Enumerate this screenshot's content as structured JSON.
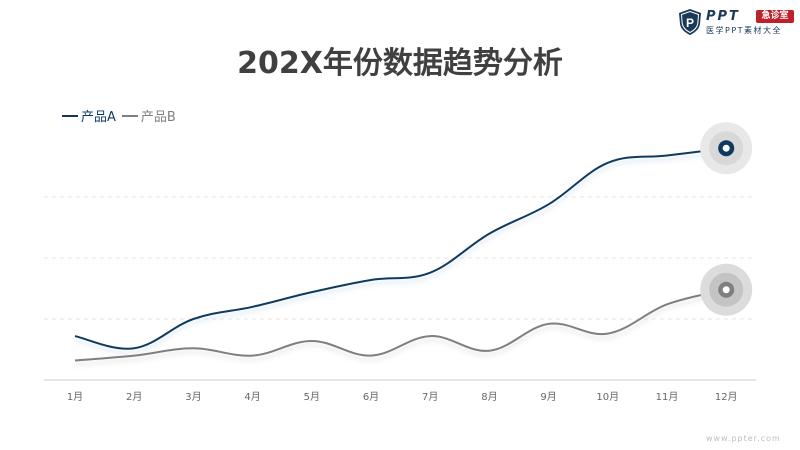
{
  "logo": {
    "shield_letter": "P",
    "ppt": "PPT",
    "badge": "急诊室",
    "subtitle": "医学PPT素材大全"
  },
  "colors": {
    "series_a": "#0e3a5f",
    "series_b": "#7f7f7f",
    "title": "#404040",
    "grid": "#e6e6e6",
    "axis": "#cccccc"
  },
  "watermark": "www.ppter.com",
  "chart_data": {
    "type": "line",
    "title": "202X年份数据趋势分析",
    "xlabel": "",
    "ylabel": "",
    "categories": [
      "1月",
      "2月",
      "3月",
      "4月",
      "5月",
      "6月",
      "7月",
      "8月",
      "9月",
      "10月",
      "11月",
      "12月"
    ],
    "ylim": [
      0,
      100
    ],
    "grid": true,
    "legend_position": "top-left",
    "series": [
      {
        "name": "产品A",
        "values": [
          18,
          13,
          25,
          30,
          36,
          41,
          44,
          60,
          72,
          89,
          92,
          95
        ],
        "color": "#0e3a5f"
      },
      {
        "name": "产品B",
        "values": [
          8,
          10,
          13,
          10,
          16,
          10,
          18,
          12,
          23,
          19,
          31,
          37
        ],
        "color": "#7f7f7f"
      }
    ],
    "end_markers": true
  }
}
